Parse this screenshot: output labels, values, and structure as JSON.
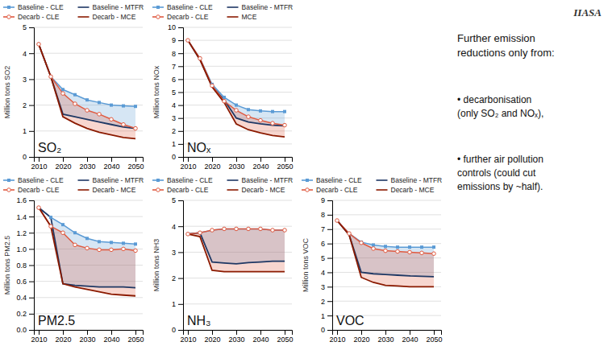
{
  "chart_data": [
    {
      "type": "line",
      "title": "SO₂",
      "y_label": "Million tons SO2",
      "x": [
        2010,
        2015,
        2020,
        2025,
        2030,
        2035,
        2040,
        2045,
        2050
      ],
      "xlim": [
        2008,
        2053
      ],
      "xticks": [
        2010,
        2020,
        2030,
        2040,
        2050
      ],
      "ylim": [
        0,
        5
      ],
      "yticks": [
        0,
        1,
        2,
        3,
        4,
        5
      ],
      "grid": true,
      "legend": true,
      "series": [
        {
          "name": "Baseline - CLE",
          "color": "#5B9BD5",
          "marker": "square",
          "values": [
            4.35,
            3.1,
            2.6,
            2.4,
            2.2,
            2.1,
            2.0,
            1.97,
            1.95
          ]
        },
        {
          "name": "Baseline - MTFR",
          "color": "#1F3864",
          "values": [
            4.35,
            3.1,
            1.65,
            1.55,
            1.45,
            1.35,
            1.25,
            1.15,
            1.1
          ]
        },
        {
          "name": "Decarb - CLE",
          "color": "#E05A40",
          "marker": "circle",
          "values": [
            4.35,
            3.1,
            2.45,
            2.05,
            1.8,
            1.65,
            1.45,
            1.25,
            1.1
          ]
        },
        {
          "name": "Decarb - MCE",
          "color": "#8B1A00",
          "values": [
            4.35,
            3.1,
            1.55,
            1.3,
            1.1,
            0.95,
            0.85,
            0.75,
            0.7
          ]
        }
      ],
      "annotations": [
        "IIASA",
        "Further emission\nreductions only from:",
        "• decarbonisation\n(only SO₂ and NOₓ),",
        "• further air pollution\ncontrols (could cut\nemissions by ~half)."
      ]
    },
    {
      "type": "line",
      "title": "NOₓ",
      "y_label": "Million tons NOx",
      "x": [
        2010,
        2015,
        2020,
        2025,
        2030,
        2035,
        2040,
        2045,
        2050
      ],
      "xlim": [
        2008,
        2053
      ],
      "xticks": [
        2010,
        2020,
        2030,
        2040,
        2050
      ],
      "ylim": [
        0,
        10
      ],
      "yticks": [
        0,
        1,
        2,
        3,
        4,
        5,
        6,
        7,
        8,
        9,
        10
      ],
      "grid": true,
      "legend": true,
      "series": [
        {
          "name": "Baseline - CLE",
          "color": "#5B9BD5",
          "marker": "square",
          "values": [
            9.0,
            7.6,
            5.6,
            4.6,
            4.0,
            3.65,
            3.55,
            3.5,
            3.5
          ]
        },
        {
          "name": "Baseline - MTFR",
          "color": "#1F3864",
          "values": [
            9.0,
            7.5,
            5.45,
            4.4,
            3.0,
            2.7,
            2.55,
            2.45,
            2.4
          ]
        },
        {
          "name": "Decarb - CLE",
          "color": "#E05A40",
          "marker": "circle",
          "values": [
            9.0,
            7.6,
            5.5,
            4.3,
            3.6,
            3.1,
            2.82,
            2.6,
            2.45
          ]
        },
        {
          "name": "MCE",
          "color": "#8B1A00",
          "values": [
            9.0,
            7.5,
            5.4,
            4.2,
            2.55,
            2.1,
            1.85,
            1.65,
            1.55
          ]
        }
      ]
    },
    {
      "type": "line",
      "title": "PM2.5",
      "y_label": "Million tons PM2.5",
      "x": [
        2010,
        2015,
        2020,
        2025,
        2030,
        2035,
        2040,
        2045,
        2050
      ],
      "xlim": [
        2008,
        2053
      ],
      "xticks": [
        2010,
        2020,
        2030,
        2040,
        2050
      ],
      "ylim": [
        0.0,
        1.6
      ],
      "yticks": [
        {
          "value": 0.0,
          "label": "0.0"
        },
        0.2,
        0.4,
        0.6,
        0.8,
        {
          "value": 1.0,
          "label": "1.0"
        },
        1.2,
        1.4,
        1.6
      ],
      "grid": true,
      "legend": true,
      "series": [
        {
          "name": "Baseline - CLE",
          "color": "#5B9BD5",
          "marker": "square",
          "values": [
            1.51,
            1.39,
            1.3,
            1.2,
            1.13,
            1.09,
            1.08,
            1.07,
            1.06
          ]
        },
        {
          "name": "Baseline - MTFR",
          "color": "#1F3864",
          "values": [
            1.51,
            1.39,
            0.57,
            0.55,
            0.54,
            0.53,
            0.53,
            0.53,
            0.52
          ]
        },
        {
          "name": "Decarb - CLE",
          "color": "#E05A40",
          "marker": "circle",
          "values": [
            1.51,
            1.28,
            1.2,
            1.05,
            1.01,
            0.99,
            0.99,
            1.0,
            0.98
          ]
        },
        {
          "name": "Decarb - MCE",
          "color": "#8B1A00",
          "values": [
            1.51,
            1.28,
            0.57,
            0.53,
            0.5,
            0.47,
            0.44,
            0.43,
            0.42
          ]
        }
      ]
    },
    {
      "type": "line",
      "title": "NH₃",
      "y_label": "Million tons NH3",
      "x": [
        2010,
        2015,
        2020,
        2025,
        2030,
        2035,
        2040,
        2045,
        2050
      ],
      "xlim": [
        2008,
        2053
      ],
      "xticks": [
        2010,
        2020,
        2030,
        2040,
        2050
      ],
      "ylim": [
        0,
        5
      ],
      "yticks": [
        0,
        1,
        2,
        3,
        4,
        5
      ],
      "grid": true,
      "legend": true,
      "series": [
        {
          "name": "Baseline - CLE",
          "color": "#5B9BD5",
          "marker": "square",
          "values": [
            3.7,
            3.75,
            3.85,
            3.9,
            3.9,
            3.9,
            3.9,
            3.85,
            3.85
          ]
        },
        {
          "name": "Baseline - MTFR",
          "color": "#1F3864",
          "values": [
            3.7,
            3.75,
            2.62,
            2.58,
            2.55,
            2.6,
            2.62,
            2.65,
            2.65
          ]
        },
        {
          "name": "Decarb - CLE",
          "color": "#E05A40",
          "marker": "circle",
          "values": [
            3.7,
            3.75,
            3.85,
            3.9,
            3.9,
            3.9,
            3.9,
            3.85,
            3.85
          ]
        },
        {
          "name": "Decarb - MCE",
          "color": "#8B1A00",
          "values": [
            3.7,
            3.6,
            2.3,
            2.25,
            2.25,
            2.25,
            2.25,
            2.25,
            2.25
          ]
        }
      ]
    },
    {
      "type": "line",
      "title": "VOC",
      "y_label": "Million tons VOC",
      "x": [
        2010,
        2015,
        2020,
        2025,
        2030,
        2035,
        2040,
        2045,
        2050
      ],
      "xlim": [
        2008,
        2053
      ],
      "xticks": [
        2010,
        2020,
        2030,
        2040,
        2050
      ],
      "ylim": [
        0,
        9
      ],
      "yticks": [
        0,
        1,
        2,
        3,
        4,
        5,
        6,
        7,
        8,
        9
      ],
      "grid": true,
      "legend": true,
      "series": [
        {
          "name": "Baseline - CLE",
          "color": "#5B9BD5",
          "marker": "square",
          "values": [
            7.6,
            6.7,
            6.1,
            5.9,
            5.8,
            5.75,
            5.75,
            5.75,
            5.75
          ]
        },
        {
          "name": "Baseline - MTFR",
          "color": "#1F3864",
          "values": [
            7.6,
            6.6,
            4.0,
            3.9,
            3.85,
            3.8,
            3.75,
            3.72,
            3.7
          ]
        },
        {
          "name": "Decarb - CLE",
          "color": "#E05A40",
          "marker": "circle",
          "values": [
            7.6,
            6.7,
            6.05,
            5.65,
            5.5,
            5.45,
            5.4,
            5.35,
            5.3
          ]
        },
        {
          "name": "Decarb - MCE",
          "color": "#8B1A00",
          "values": [
            7.6,
            6.6,
            3.65,
            3.3,
            3.1,
            3.05,
            3.0,
            3.0,
            3.0
          ]
        }
      ]
    }
  ]
}
